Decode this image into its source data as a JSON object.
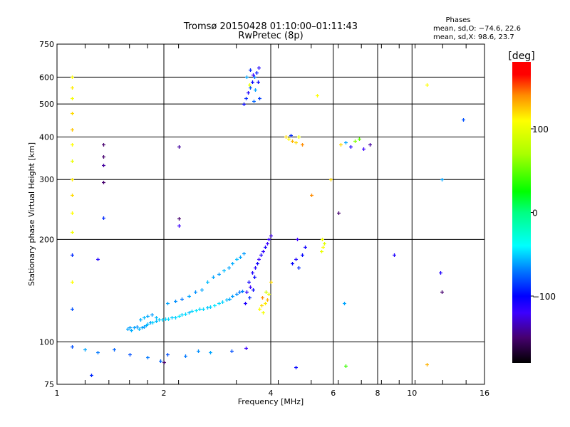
{
  "chart_data": {
    "type": "scatter",
    "title": "Tromsø 20150428 01:10:00–01:11:43",
    "subtitle": "RwPretec (8p)",
    "xlabel": "Frequency [MHz]",
    "ylabel": "Stationary phase Virtual Height [km]",
    "xscale": "log",
    "yscale": "log",
    "xlim": [
      1,
      16
    ],
    "ylim": [
      75,
      750
    ],
    "xticks": [
      1,
      2,
      4,
      6,
      8,
      10,
      16
    ],
    "xtick_labels": [
      "1",
      "2",
      "4",
      "6",
      "8",
      "10",
      "16"
    ],
    "xgrid": [
      2,
      4,
      6,
      8,
      10
    ],
    "yticks": [
      75,
      100,
      200,
      300,
      400,
      500,
      600,
      750
    ],
    "ytick_labels": [
      "75",
      "100",
      "200",
      "300",
      "400",
      "500",
      "600",
      "750"
    ],
    "ygrid": [
      100,
      200,
      300,
      400,
      500,
      600
    ],
    "grid": true,
    "stats": {
      "title": "Phases",
      "o_line": "mean, sd,O: −74.6, 22.6",
      "x_line": "mean, sd,X:  98.6, 23.7"
    },
    "colorbar": {
      "label": "[deg]",
      "range": [
        -180,
        180
      ],
      "ticks": [
        100,
        0,
        -100
      ],
      "tick_labels": [
        "100",
        "0",
        "−100"
      ]
    },
    "point_fields": [
      "frequency_mhz",
      "height_km",
      "phase_deg"
    ],
    "points": [
      [
        1.58,
        109,
        -60
      ],
      [
        1.6,
        110,
        -62
      ],
      [
        1.62,
        108,
        -58
      ],
      [
        1.65,
        110,
        -60
      ],
      [
        1.68,
        111,
        -65
      ],
      [
        1.7,
        109,
        -55
      ],
      [
        1.73,
        110,
        -60
      ],
      [
        1.76,
        111,
        -62
      ],
      [
        1.78,
        112,
        -58
      ],
      [
        1.8,
        113,
        -55
      ],
      [
        1.83,
        114,
        -60
      ],
      [
        1.86,
        114,
        -50
      ],
      [
        1.9,
        115,
        -55
      ],
      [
        1.94,
        116,
        -52
      ],
      [
        1.98,
        116,
        -50
      ],
      [
        1.72,
        116,
        -58
      ],
      [
        1.76,
        118,
        -55
      ],
      [
        1.8,
        119,
        -60
      ],
      [
        1.85,
        120,
        -62
      ],
      [
        1.9,
        118,
        -55
      ],
      [
        2.02,
        117,
        -50
      ],
      [
        2.06,
        117,
        -48
      ],
      [
        2.1,
        118,
        -52
      ],
      [
        2.15,
        118,
        -50
      ],
      [
        2.2,
        119,
        -45
      ],
      [
        2.25,
        120,
        -50
      ],
      [
        2.3,
        121,
        -48
      ],
      [
        2.35,
        122,
        -55
      ],
      [
        2.4,
        123,
        -50
      ],
      [
        2.46,
        124,
        -45
      ],
      [
        2.52,
        125,
        -50
      ],
      [
        2.58,
        125,
        -48
      ],
      [
        2.65,
        126,
        -52
      ],
      [
        2.7,
        127,
        -50
      ],
      [
        2.78,
        128,
        -45
      ],
      [
        2.85,
        130,
        -48
      ],
      [
        2.92,
        131,
        -50
      ],
      [
        3.0,
        133,
        -55
      ],
      [
        3.06,
        134,
        -60
      ],
      [
        3.12,
        136,
        -62
      ],
      [
        3.2,
        138,
        -65
      ],
      [
        3.26,
        140,
        -70
      ],
      [
        3.32,
        141,
        -68
      ],
      [
        2.05,
        130,
        -60
      ],
      [
        2.15,
        132,
        -65
      ],
      [
        2.25,
        134,
        -70
      ],
      [
        2.35,
        136,
        -60
      ],
      [
        2.45,
        140,
        -65
      ],
      [
        2.55,
        142,
        -60
      ],
      [
        2.65,
        150,
        -55
      ],
      [
        2.75,
        155,
        -60
      ],
      [
        2.85,
        158,
        -62
      ],
      [
        2.95,
        162,
        -55
      ],
      [
        3.05,
        165,
        -60
      ],
      [
        3.12,
        170,
        -58
      ],
      [
        3.2,
        175,
        -55
      ],
      [
        3.28,
        178,
        -60
      ],
      [
        3.36,
        182,
        -62
      ],
      [
        3.38,
        130,
        -110
      ],
      [
        3.42,
        140,
        -115
      ],
      [
        3.46,
        150,
        -105
      ],
      [
        3.5,
        145,
        -120
      ],
      [
        3.55,
        160,
        -110
      ],
      [
        3.6,
        155,
        -100
      ],
      [
        3.62,
        165,
        -112
      ],
      [
        3.66,
        170,
        -105
      ],
      [
        3.7,
        175,
        -120
      ],
      [
        3.75,
        180,
        -110
      ],
      [
        3.8,
        185,
        -115
      ],
      [
        3.85,
        190,
        -108
      ],
      [
        3.9,
        195,
        -120
      ],
      [
        3.95,
        200,
        -118
      ],
      [
        4.0,
        205,
        -125
      ],
      [
        3.48,
        135,
        -90
      ],
      [
        3.56,
        142,
        -100
      ],
      [
        3.72,
        125,
        110
      ],
      [
        3.76,
        128,
        120
      ],
      [
        3.8,
        122,
        105
      ],
      [
        3.85,
        130,
        115
      ],
      [
        3.9,
        133,
        130
      ],
      [
        3.95,
        138,
        100
      ],
      [
        3.78,
        135,
        140
      ],
      [
        3.88,
        140,
        90
      ],
      [
        4.0,
        150,
        120
      ],
      [
        3.35,
        500,
        -100
      ],
      [
        3.4,
        520,
        -90
      ],
      [
        3.45,
        540,
        -110
      ],
      [
        3.5,
        560,
        -80
      ],
      [
        3.55,
        580,
        -100
      ],
      [
        3.6,
        600,
        -70
      ],
      [
        3.65,
        620,
        -95
      ],
      [
        3.7,
        640,
        -110
      ],
      [
        3.42,
        600,
        -60
      ],
      [
        3.5,
        630,
        -90
      ],
      [
        3.58,
        510,
        -75
      ],
      [
        3.62,
        550,
        -60
      ],
      [
        3.68,
        580,
        -100
      ],
      [
        3.72,
        520,
        -85
      ],
      [
        3.48,
        570,
        100
      ],
      [
        3.56,
        610,
        -120
      ],
      [
        4.4,
        400,
        120
      ],
      [
        4.5,
        395,
        110
      ],
      [
        4.6,
        390,
        130
      ],
      [
        4.7,
        385,
        120
      ],
      [
        4.8,
        400,
        100
      ],
      [
        4.9,
        380,
        140
      ],
      [
        4.55,
        405,
        -90
      ],
      [
        6.3,
        380,
        120
      ],
      [
        6.5,
        385,
        -60
      ],
      [
        6.7,
        375,
        -110
      ],
      [
        6.9,
        390,
        60
      ],
      [
        7.1,
        395,
        50
      ],
      [
        7.6,
        380,
        -140
      ],
      [
        7.3,
        370,
        -120
      ],
      [
        1.1,
        600,
        110
      ],
      [
        1.1,
        560,
        115
      ],
      [
        1.1,
        520,
        105
      ],
      [
        1.1,
        470,
        120
      ],
      [
        1.1,
        420,
        125
      ],
      [
        1.1,
        380,
        110
      ],
      [
        1.1,
        340,
        100
      ],
      [
        1.1,
        300,
        115
      ],
      [
        1.1,
        270,
        120
      ],
      [
        1.1,
        240,
        110
      ],
      [
        1.1,
        210,
        105
      ],
      [
        1.1,
        180,
        -90
      ],
      [
        1.1,
        150,
        110
      ],
      [
        1.1,
        125,
        -80
      ],
      [
        1.35,
        380,
        -150
      ],
      [
        1.35,
        350,
        -150
      ],
      [
        1.35,
        330,
        -140
      ],
      [
        1.35,
        295,
        -150
      ],
      [
        1.35,
        232,
        -90
      ],
      [
        1.3,
        175,
        -110
      ],
      [
        2.2,
        375,
        -140
      ],
      [
        2.2,
        230,
        -150
      ],
      [
        2.2,
        220,
        -120
      ],
      [
        1.1,
        97,
        -80
      ],
      [
        1.2,
        95,
        -60
      ],
      [
        1.3,
        93,
        -70
      ],
      [
        1.45,
        95,
        -75
      ],
      [
        1.6,
        92,
        -80
      ],
      [
        1.8,
        90,
        -70
      ],
      [
        1.95,
        88,
        -75
      ],
      [
        2.05,
        92,
        -80
      ],
      [
        2.3,
        91,
        -70
      ],
      [
        2.5,
        94,
        -65
      ],
      [
        2.7,
        93,
        -60
      ],
      [
        3.1,
        94,
        -80
      ],
      [
        3.4,
        96,
        -120
      ],
      [
        1.25,
        80,
        -90
      ],
      [
        4.7,
        84,
        -100
      ],
      [
        2.0,
        87,
        -150
      ],
      [
        4.6,
        170,
        -100
      ],
      [
        4.7,
        175,
        -110
      ],
      [
        4.8,
        165,
        -90
      ],
      [
        4.9,
        180,
        -100
      ],
      [
        4.75,
        200,
        -120
      ],
      [
        5.0,
        190,
        -105
      ],
      [
        5.55,
        185,
        100
      ],
      [
        5.6,
        190,
        110
      ],
      [
        5.65,
        195,
        95
      ],
      [
        5.58,
        200,
        105
      ],
      [
        8.9,
        180,
        -110
      ],
      [
        12.1,
        300,
        -60
      ],
      [
        12.0,
        160,
        -110
      ],
      [
        13.9,
        450,
        -80
      ],
      [
        11.0,
        570,
        110
      ],
      [
        11.0,
        86,
        130
      ],
      [
        6.5,
        85,
        40
      ],
      [
        5.4,
        530,
        110
      ],
      [
        5.9,
        300,
        120
      ],
      [
        6.2,
        240,
        -150
      ],
      [
        6.45,
        130,
        -60
      ],
      [
        12.1,
        140,
        -150
      ],
      [
        5.2,
        270,
        140
      ]
    ]
  }
}
